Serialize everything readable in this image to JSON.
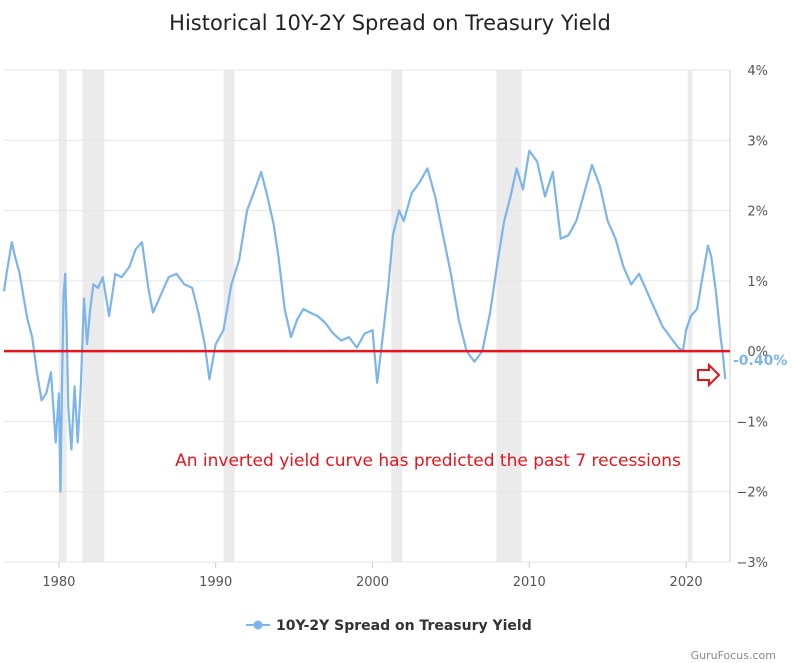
{
  "chart_data": {
    "type": "line",
    "title": "Historical 10Y-2Y Spread on Treasury Yield",
    "ylabel": "",
    "xlabel": "",
    "ylim": [
      -3,
      4
    ],
    "xlim": [
      1976.5,
      2022.8
    ],
    "y_tick_labels": [
      "4%",
      "3%",
      "2%",
      "1%",
      "0%",
      "−1%",
      "−2%",
      "−3%"
    ],
    "y_tick_values": [
      4,
      3,
      2,
      1,
      0,
      -1,
      -2,
      -3
    ],
    "x_tick_labels": [
      "1980",
      "1990",
      "2000",
      "2010",
      "2020"
    ],
    "x_tick_values": [
      1980,
      1990,
      2000,
      2010,
      2020
    ],
    "grid": true,
    "legend_position": "bottom-center",
    "series": [
      {
        "name": "10Y-2Y Spread on Treasury Yield",
        "color": "#7cb5ec",
        "x": [
          1976.5,
          1976.7,
          1977.0,
          1977.2,
          1977.5,
          1977.8,
          1978.0,
          1978.3,
          1978.6,
          1978.9,
          1979.2,
          1979.5,
          1979.8,
          1980.0,
          1980.1,
          1980.2,
          1980.3,
          1980.4,
          1980.5,
          1980.6,
          1980.8,
          1981.0,
          1981.2,
          1981.4,
          1981.6,
          1981.8,
          1982.0,
          1982.2,
          1982.5,
          1982.8,
          1983.2,
          1983.6,
          1984.0,
          1984.5,
          1984.9,
          1985.3,
          1985.7,
          1986.0,
          1986.5,
          1987.0,
          1987.5,
          1988.0,
          1988.5,
          1988.9,
          1989.3,
          1989.6,
          1990.0,
          1990.5,
          1991.0,
          1991.5,
          1992.0,
          1992.5,
          1992.9,
          1993.3,
          1993.7,
          1994.0,
          1994.4,
          1994.8,
          1995.2,
          1995.6,
          1996.0,
          1996.5,
          1997.0,
          1997.5,
          1998.0,
          1998.5,
          1999.0,
          1999.5,
          2000.0,
          2000.3,
          2000.6,
          2001.0,
          2001.3,
          2001.7,
          2002.0,
          2002.5,
          2003.0,
          2003.5,
          2004.0,
          2004.5,
          2005.0,
          2005.5,
          2006.0,
          2006.5,
          2007.0,
          2007.5,
          2008.0,
          2008.4,
          2008.8,
          2009.2,
          2009.6,
          2010.0,
          2010.5,
          2011.0,
          2011.5,
          2012.0,
          2012.5,
          2013.0,
          2013.5,
          2014.0,
          2014.5,
          2015.0,
          2015.5,
          2016.0,
          2016.5,
          2017.0,
          2017.5,
          2018.0,
          2018.5,
          2019.0,
          2019.5,
          2019.8,
          2020.0,
          2020.3,
          2020.7,
          2021.0,
          2021.4,
          2021.6,
          2021.9,
          2022.2,
          2022.35,
          2022.5
        ],
        "y": [
          0.85,
          1.15,
          1.55,
          1.35,
          1.1,
          0.7,
          0.45,
          0.2,
          -0.3,
          -0.7,
          -0.6,
          -0.3,
          -1.3,
          -0.6,
          -2.0,
          -0.5,
          0.8,
          1.1,
          0.3,
          -0.8,
          -1.4,
          -0.5,
          -1.3,
          -0.5,
          0.75,
          0.1,
          0.6,
          0.95,
          0.9,
          1.05,
          0.5,
          1.1,
          1.05,
          1.2,
          1.45,
          1.55,
          0.9,
          0.55,
          0.8,
          1.05,
          1.1,
          0.95,
          0.9,
          0.55,
          0.1,
          -0.4,
          0.1,
          0.3,
          0.95,
          1.3,
          2.0,
          2.3,
          2.55,
          2.2,
          1.8,
          1.35,
          0.6,
          0.2,
          0.45,
          0.6,
          0.55,
          0.5,
          0.4,
          0.25,
          0.15,
          0.2,
          0.05,
          0.25,
          0.3,
          -0.45,
          0.1,
          0.9,
          1.65,
          2.0,
          1.85,
          2.25,
          2.4,
          2.6,
          2.2,
          1.65,
          1.1,
          0.45,
          0.0,
          -0.15,
          0.0,
          0.55,
          1.3,
          1.85,
          2.2,
          2.6,
          2.3,
          2.85,
          2.7,
          2.2,
          2.55,
          1.6,
          1.65,
          1.85,
          2.25,
          2.65,
          2.35,
          1.85,
          1.6,
          1.2,
          0.95,
          1.1,
          0.85,
          0.6,
          0.35,
          0.2,
          0.05,
          0.0,
          0.3,
          0.5,
          0.6,
          1.0,
          1.5,
          1.35,
          0.85,
          0.2,
          -0.05,
          -0.4
        ]
      }
    ],
    "recessions": [
      [
        1980.0,
        1980.5
      ],
      [
        1981.5,
        1982.9
      ],
      [
        1990.5,
        1991.2
      ],
      [
        2001.2,
        2001.9
      ],
      [
        2007.9,
        2009.5
      ],
      [
        2020.1,
        2020.4
      ]
    ],
    "threshold_line": {
      "value": 0,
      "color": "#e8141c"
    },
    "annotation": "An inverted yield curve has predicted the past 7 recessions",
    "last_value_label": "-0.40%"
  },
  "legend": {
    "label": "10Y-2Y Spread on Treasury Yield"
  },
  "watermark": "GuruFocus.com",
  "colors": {
    "line": "#7cb5ec",
    "threshold": "#e8141c",
    "recession_band": "#ebebeb",
    "grid": "#e6e6e6",
    "arrow": "#e8141c"
  }
}
